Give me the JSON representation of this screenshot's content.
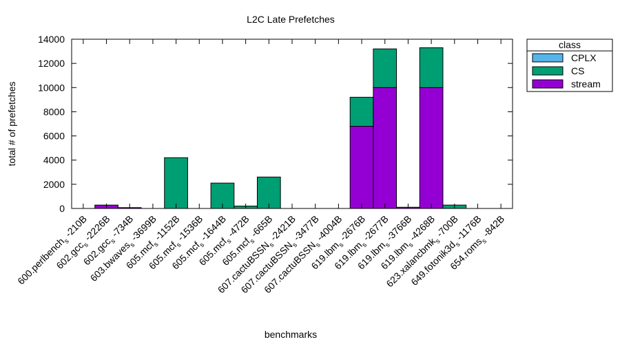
{
  "chart_data": {
    "type": "bar",
    "stacked": true,
    "title": "L2C Late Prefetches",
    "xlabel": "benchmarks",
    "ylabel": "total # of prefetches",
    "ylim": [
      0,
      14000
    ],
    "yticks": [
      0,
      2000,
      4000,
      6000,
      8000,
      10000,
      12000,
      14000
    ],
    "grid": false,
    "legend_title": "class",
    "legend_position": "outside-right-top",
    "categories": [
      {
        "prefix": "600.perlbench",
        "suffix": "-210B"
      },
      {
        "prefix": "602.gcc",
        "suffix": "-2226B"
      },
      {
        "prefix": "602.gcc",
        "suffix": "-734B"
      },
      {
        "prefix": "603.bwaves",
        "suffix": "-3699B"
      },
      {
        "prefix": "605.mcf",
        "suffix": "-1152B"
      },
      {
        "prefix": "605.mcf",
        "suffix": "-1536B"
      },
      {
        "prefix": "605.mcf",
        "suffix": "-1644B"
      },
      {
        "prefix": "605.mcf",
        "suffix": "-472B"
      },
      {
        "prefix": "605.mcf",
        "suffix": "-665B"
      },
      {
        "prefix": "607.cactuBSSN",
        "suffix": "-2421B"
      },
      {
        "prefix": "607.cactuBSSN",
        "suffix": "-3477B"
      },
      {
        "prefix": "607.cactuBSSN",
        "suffix": "-4004B"
      },
      {
        "prefix": "619.lbm",
        "suffix": "-2676B"
      },
      {
        "prefix": "619.lbm",
        "suffix": "-2677B"
      },
      {
        "prefix": "619.lbm",
        "suffix": "-3766B"
      },
      {
        "prefix": "619.lbm",
        "suffix": "-4268B"
      },
      {
        "prefix": "623.xalancbmk",
        "suffix": "-700B"
      },
      {
        "prefix": "649.fotonik3d",
        "suffix": "-1176B"
      },
      {
        "prefix": "654.roms",
        "suffix": "-842B"
      }
    ],
    "subscript": "s",
    "series": [
      {
        "name": "stream",
        "color": "#9400d3",
        "values": [
          0,
          280,
          70,
          0,
          0,
          0,
          0,
          0,
          0,
          0,
          0,
          0,
          6800,
          10000,
          100,
          10000,
          0,
          0,
          0
        ]
      },
      {
        "name": "CS",
        "color": "#009e73",
        "values": [
          0,
          0,
          0,
          0,
          4200,
          0,
          2100,
          200,
          2600,
          0,
          0,
          0,
          2400,
          3200,
          0,
          3300,
          280,
          0,
          0
        ]
      },
      {
        "name": "CPLX",
        "color": "#56b4e9",
        "values": [
          0,
          0,
          0,
          0,
          0,
          0,
          0,
          0,
          0,
          0,
          0,
          0,
          0,
          0,
          0,
          0,
          0,
          0,
          0
        ]
      }
    ],
    "legend_order": [
      "CPLX",
      "CS",
      "stream"
    ]
  }
}
